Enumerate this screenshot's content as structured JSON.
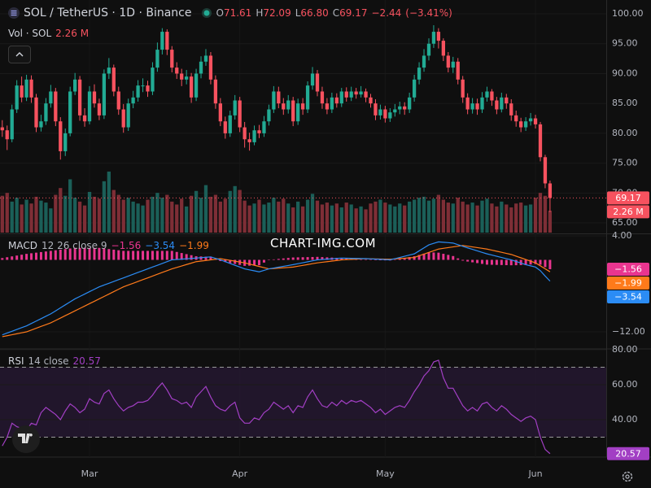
{
  "watermark": "CHART-IMG.COM",
  "chart_data": [
    {
      "type": "candlestick",
      "title": "SOL / TetherUS · 1D · Binance",
      "legend": {
        "keys": [
          "O",
          "H",
          "L",
          "C"
        ],
        "value_labels": [
          "71.61",
          "72.09",
          "66.80",
          "69.17"
        ],
        "change": -2.44,
        "change_label": "−2.44",
        "change_pct": -3.41,
        "change_pct_label": "(−3.41%)"
      },
      "volume_title": "Vol · SOL",
      "volume_last_label": "2.26 M",
      "up_color": "#22ab94",
      "down_color": "#f7525f",
      "volume_up_color": "#1b5f58",
      "volume_down_color": "#7e2e36",
      "grid": true,
      "xlim": [
        -0.47,
        124.6
      ],
      "xticks": [
        {
          "value": 18,
          "label": "Mar"
        },
        {
          "value": 49,
          "label": "Apr"
        },
        {
          "value": 79,
          "label": "May"
        },
        {
          "value": 110,
          "label": "Jun"
        }
      ],
      "ylim": [
        63.37,
        102.32
      ],
      "yticks": [
        {
          "value": 100,
          "label": "100.00"
        },
        {
          "value": 95,
          "label": "95.00"
        },
        {
          "value": 90,
          "label": "90.00"
        },
        {
          "value": 85,
          "label": "85.00"
        },
        {
          "value": 80,
          "label": "80.00"
        },
        {
          "value": 75,
          "label": "75.00"
        },
        {
          "value": 70,
          "label": "70.00"
        },
        {
          "value": 65,
          "label": "65.00"
        }
      ],
      "volume_ylim": [
        0,
        24
      ],
      "open": [
        81,
        80.5,
        79,
        84,
        88,
        86,
        89,
        86,
        81,
        82,
        85,
        87,
        82,
        77,
        80,
        87,
        89,
        83,
        82,
        87,
        85,
        83,
        90,
        91,
        87,
        84,
        81,
        85,
        86,
        88,
        88,
        87,
        91,
        94,
        97,
        94,
        91,
        90,
        89,
        89.5,
        86,
        90,
        92,
        93,
        89,
        85,
        82,
        80,
        83,
        85.5,
        81,
        79,
        78.5,
        80.5,
        80,
        82,
        84,
        87,
        85,
        84,
        85.5,
        82,
        85,
        84,
        88,
        90,
        87,
        85,
        84,
        86,
        85,
        87,
        86,
        87,
        86.5,
        87,
        86,
        85,
        83,
        84,
        82.5,
        83.5,
        84,
        84.5,
        84,
        86,
        89,
        91,
        93,
        95,
        97,
        95.5,
        93,
        91,
        92,
        89,
        86,
        84,
        85,
        84,
        86,
        87,
        85.5,
        84,
        86,
        85,
        83,
        82,
        81,
        82,
        82.5,
        81.5,
        76,
        71.61
      ],
      "high": [
        82.2,
        81.3,
        84.8,
        88.9,
        89.5,
        89.8,
        89.7,
        86.6,
        83.1,
        85.9,
        88.1,
        87.6,
        82.7,
        80.8,
        87.8,
        90.1,
        89.6,
        84.2,
        87.9,
        88.2,
        85.8,
        90.7,
        92.6,
        91.5,
        87.8,
        84.9,
        85.8,
        87.1,
        88.9,
        89.2,
        88.8,
        91.9,
        95.2,
        97.6,
        97.4,
        94.6,
        91.9,
        90.8,
        90.6,
        90.1,
        90.8,
        92.9,
        94.1,
        93.6,
        89.7,
        85.9,
        82.8,
        83.8,
        86.4,
        86.1,
        81.9,
        80.1,
        81.3,
        81.4,
        82.9,
        84.8,
        87.9,
        87.8,
        85.9,
        86.4,
        86.1,
        85.8,
        85.9,
        88.7,
        91.1,
        90.6,
        87.8,
        85.9,
        86.8,
        86.7,
        87.6,
        87.7,
        87.8,
        87.6,
        87.9,
        87.5,
        86.6,
        85.7,
        84.8,
        84.6,
        84.2,
        84.9,
        85.3,
        85.2,
        86.8,
        89.8,
        91.9,
        94.1,
        95.9,
        98.1,
        97.6,
        95.9,
        93.6,
        92.8,
        92.6,
        89.6,
        86.7,
        85.9,
        85.8,
        86.9,
        87.8,
        87.4,
        86.1,
        86.8,
        86.6,
        85.7,
        83.8,
        82.6,
        82.7,
        83.4,
        83.1,
        81.9,
        76.4,
        72.09
      ],
      "low": [
        79.4,
        77.2,
        78.5,
        83.4,
        85.2,
        85.4,
        85.1,
        80.2,
        80.3,
        81.4,
        84.3,
        81.2,
        75.6,
        76.2,
        79.5,
        86.4,
        82.1,
        81.1,
        81.5,
        84.3,
        82.2,
        82.4,
        89.1,
        86.2,
        83.1,
        80.1,
        80.4,
        84.2,
        85.3,
        86.9,
        86.1,
        86.4,
        90.3,
        93.2,
        93.1,
        90.2,
        89.1,
        87.9,
        88.2,
        85.1,
        85.4,
        89.2,
        91.3,
        88.2,
        84.1,
        81.2,
        79.1,
        79.4,
        82.3,
        80.2,
        77.6,
        77.1,
        78,
        79.2,
        79.4,
        81.3,
        83.4,
        84.2,
        83.1,
        83.3,
        81.2,
        81.4,
        83.1,
        83.4,
        87.3,
        86.2,
        84.1,
        83.2,
        83.4,
        84.3,
        84.4,
        85.3,
        85.4,
        85.8,
        86,
        85.2,
        84.3,
        82.2,
        82.3,
        81.8,
        81.9,
        82.8,
        83.2,
        83.1,
        83.4,
        85.3,
        88.2,
        90.3,
        92.2,
        94.3,
        94.2,
        92.1,
        90.2,
        90.1,
        88.2,
        85.1,
        83.2,
        83.3,
        83.1,
        83.4,
        85.3,
        84.6,
        83.2,
        83.5,
        84.1,
        82.1,
        81.1,
        80.2,
        80.4,
        81.3,
        80.8,
        75.3,
        70.8,
        66.8
      ],
      "close": [
        80.5,
        79,
        84,
        88,
        86,
        89,
        86,
        81,
        82,
        85,
        87,
        82,
        77,
        80,
        87,
        89,
        83,
        82,
        87,
        85,
        83,
        90,
        91,
        87,
        84,
        81,
        85,
        86,
        88,
        88,
        87,
        91,
        94,
        97,
        94,
        91,
        90,
        89,
        89.5,
        86,
        90,
        92,
        93,
        89,
        85,
        82,
        80,
        83,
        85.5,
        81,
        79,
        78.5,
        80.5,
        80,
        82,
        84,
        87,
        85,
        84,
        85.5,
        82,
        85,
        84,
        88,
        90,
        87,
        85,
        84,
        86,
        85,
        87,
        86,
        87,
        86.5,
        87,
        86,
        85,
        83,
        84,
        82.5,
        83.5,
        84,
        84.5,
        84,
        86,
        89,
        91,
        93,
        95,
        97,
        95.5,
        93,
        91,
        92,
        89,
        86,
        84,
        85,
        84,
        86,
        87,
        85.5,
        84,
        86,
        85,
        83,
        82,
        81,
        82,
        82.5,
        81.5,
        76,
        71.61,
        69.17
      ],
      "volume": [
        3.8,
        4.1,
        3.2,
        3.6,
        2.9,
        3.4,
        3.0,
        3.7,
        3.3,
        3.1,
        2.5,
        3.9,
        4.6,
        3.8,
        5.5,
        3.6,
        3.2,
        2.8,
        4.2,
        3.7,
        3.5,
        5.3,
        6.3,
        4.4,
        3.9,
        3.4,
        3.6,
        3.2,
        3.0,
        2.8,
        3.4,
        3.7,
        4.1,
        3.6,
        3.9,
        3.2,
        2.9,
        3.5,
        2.7,
        3.8,
        4.3,
        3.6,
        4.9,
        3.7,
        3.9,
        3.2,
        3.5,
        4.3,
        4.8,
        4.4,
        3.3,
        2.8,
        3.0,
        3.4,
        2.9,
        3.1,
        3.6,
        3.2,
        3.5,
        3.0,
        2.6,
        3.2,
        2.7,
        3.4,
        4.0,
        3.3,
        2.9,
        3.1,
        2.8,
        3.0,
        2.6,
        3.1,
        2.9,
        2.5,
        2.7,
        2.4,
        3.0,
        3.2,
        3.4,
        3.1,
        2.9,
        2.7,
        3.0,
        2.8,
        3.2,
        3.4,
        3.6,
        3.7,
        3.3,
        3.5,
        3.9,
        3.4,
        3.1,
        3.0,
        3.6,
        3.2,
        2.9,
        3.1,
        2.8,
        3.3,
        3.5,
        3.0,
        2.7,
        3.2,
        2.9,
        2.6,
        3.0,
        3.1,
        2.8,
        2.9,
        3.6,
        4.1,
        3.8,
        2.26
      ]
    },
    {
      "type": "macd",
      "title": "MACD",
      "params": "12 26 close 9",
      "ylim": [
        -14.71,
        4
      ],
      "yticks": [
        {
          "value": 4,
          "label": "4.00"
        },
        {
          "value": -12,
          "label": "−12.00"
        }
      ],
      "histogram": {
        "color": "#e9358f",
        "last_label": "−1.56",
        "values": [
          0.3,
          0.44,
          0.58,
          0.72,
          0.86,
          1,
          1.1,
          1.2,
          1.3,
          1.4,
          1.5,
          1.6,
          1.7,
          1.8,
          1.9,
          2,
          2,
          2,
          2,
          2,
          2,
          1.9,
          1.8,
          1.7,
          1.6,
          1.5,
          1.5,
          1.5,
          1.5,
          1.5,
          1.5,
          1.5,
          1.5,
          1.5,
          1.5,
          1.5,
          1.32,
          1.14,
          0.96,
          0.78,
          0.6,
          0.57,
          0.53,
          0.5,
          0.15,
          -0.2,
          -0.36,
          -0.52,
          -0.68,
          -0.84,
          -1,
          -0.97,
          -0.93,
          -0.9,
          -0.45,
          0,
          0.08,
          0.16,
          0.24,
          0.32,
          0.4,
          0.42,
          0.44,
          0.46,
          0.48,
          0.5,
          0.46,
          0.42,
          0.38,
          0.34,
          0.3,
          0.24,
          0.18,
          0.12,
          0.06,
          0,
          -0.02,
          -0.04,
          -0.06,
          -0.08,
          -0.1,
          0.04,
          0.18,
          0.32,
          0.46,
          0.6,
          0.82,
          1.04,
          1.26,
          1.23,
          1.2,
          1.01,
          0.83,
          0.64,
          0.25,
          -0.13,
          -0.28,
          -0.41,
          -0.54,
          -0.67,
          -0.8,
          -0.82,
          -0.84,
          -0.86,
          -0.88,
          -0.9,
          -0.89,
          -0.87,
          -0.86,
          -0.78,
          -0.7,
          -0.81,
          -1.21,
          -1.56
        ]
      },
      "macd": {
        "color": "#2b8cf5",
        "last_label": "−3.54",
        "values": [
          -12.5,
          -12.2,
          -11.9,
          -11.6,
          -11.3,
          -11,
          -10.6,
          -10.2,
          -9.8,
          -9.4,
          -9,
          -8.5,
          -8,
          -7.5,
          -7,
          -6.5,
          -6.1,
          -5.7,
          -5.3,
          -4.9,
          -4.5,
          -4.2,
          -3.9,
          -3.6,
          -3.3,
          -3,
          -2.7,
          -2.4,
          -2.1,
          -1.8,
          -1.5,
          -1.2,
          -0.9,
          -0.6,
          -0.3,
          0,
          0.06,
          0.12,
          0.18,
          0.24,
          0.3,
          0.37,
          0.43,
          0.5,
          0.25,
          0,
          -0.3,
          -0.6,
          -0.9,
          -1.2,
          -1.5,
          -1.67,
          -1.83,
          -2,
          -1.75,
          -1.5,
          -1.36,
          -1.22,
          -1.08,
          -0.94,
          -0.8,
          -0.64,
          -0.48,
          -0.32,
          -0.16,
          0,
          0.06,
          0.12,
          0.18,
          0.24,
          0.3,
          0.28,
          0.26,
          0.24,
          0.22,
          0.2,
          0.16,
          0.12,
          0.08,
          0.04,
          0,
          0.2,
          0.4,
          0.6,
          0.8,
          1,
          1.5,
          2,
          2.5,
          2.75,
          3,
          2.93,
          2.87,
          2.8,
          2.53,
          2.27,
          2,
          1.75,
          1.5,
          1.25,
          1,
          0.8,
          0.6,
          0.4,
          0.2,
          0,
          -0.27,
          -0.53,
          -0.8,
          -1,
          -1.2,
          -1.8,
          -2.7,
          -3.54
        ]
      },
      "signal": {
        "color": "#ff7a1a",
        "last_label": "−1.99",
        "values": [
          -12.8,
          -12.64,
          -12.48,
          -12.32,
          -12.16,
          -12,
          -11.7,
          -11.4,
          -11.1,
          -10.8,
          -10.5,
          -10.1,
          -9.7,
          -9.3,
          -8.9,
          -8.5,
          -8.1,
          -7.7,
          -7.3,
          -6.9,
          -6.5,
          -6.1,
          -5.7,
          -5.3,
          -4.9,
          -4.5,
          -4.2,
          -3.9,
          -3.6,
          -3.3,
          -3,
          -2.7,
          -2.4,
          -2.1,
          -1.8,
          -1.5,
          -1.26,
          -1.02,
          -0.78,
          -0.54,
          -0.3,
          -0.2,
          -0.1,
          0,
          0.1,
          0.2,
          0.06,
          -0.08,
          -0.22,
          -0.36,
          -0.5,
          -0.7,
          -0.9,
          -1.1,
          -1.3,
          -1.5,
          -1.44,
          -1.38,
          -1.32,
          -1.26,
          -1.2,
          -1.06,
          -0.92,
          -0.78,
          -0.64,
          -0.5,
          -0.4,
          -0.3,
          -0.2,
          -0.1,
          0,
          0.04,
          0.08,
          0.12,
          0.16,
          0.2,
          0.18,
          0.16,
          0.14,
          0.12,
          0.1,
          0.16,
          0.22,
          0.28,
          0.34,
          0.4,
          0.68,
          0.96,
          1.24,
          1.52,
          1.8,
          1.92,
          2.04,
          2.16,
          2.28,
          2.4,
          2.28,
          2.16,
          2.04,
          1.92,
          1.8,
          1.62,
          1.44,
          1.26,
          1.08,
          0.9,
          0.62,
          0.34,
          0.06,
          -0.22,
          -0.5,
          -0.99,
          -1.49,
          -1.99
        ]
      }
    },
    {
      "type": "rsi",
      "title": "RSI",
      "params": "14 close",
      "color": "#a23fc4",
      "band_color": "#2a1a38",
      "ylim": [
        18.6,
        80
      ],
      "yticks": [
        {
          "value": 80,
          "label": "80.00"
        },
        {
          "value": 60,
          "label": "60.00"
        },
        {
          "value": 40,
          "label": "40.00"
        }
      ],
      "bands": [
        70,
        30
      ],
      "values": [
        25,
        30,
        38,
        36,
        35,
        34,
        38,
        37,
        44,
        47,
        45,
        43,
        40,
        45,
        49,
        47,
        44,
        46,
        52,
        50,
        49,
        55,
        57,
        52,
        48,
        45,
        47,
        48,
        50,
        50,
        51,
        54,
        58,
        61,
        57,
        52,
        51,
        49,
        50,
        47,
        53,
        56,
        59,
        53,
        48,
        46,
        45,
        48,
        50,
        41,
        38,
        38,
        41,
        40,
        44,
        46,
        50,
        48,
        46,
        48,
        44,
        48,
        47,
        53,
        57,
        52,
        48,
        47,
        50,
        48,
        51,
        49,
        51,
        50,
        51,
        49,
        47,
        44,
        46,
        43,
        45,
        47,
        48,
        47,
        51,
        56,
        60,
        65,
        68,
        73,
        74,
        64,
        58,
        58,
        53,
        48,
        45,
        47,
        45,
        49,
        50,
        47,
        45,
        48,
        46,
        43,
        41,
        39,
        41,
        42,
        40,
        30,
        23,
        20.57
      ]
    }
  ]
}
